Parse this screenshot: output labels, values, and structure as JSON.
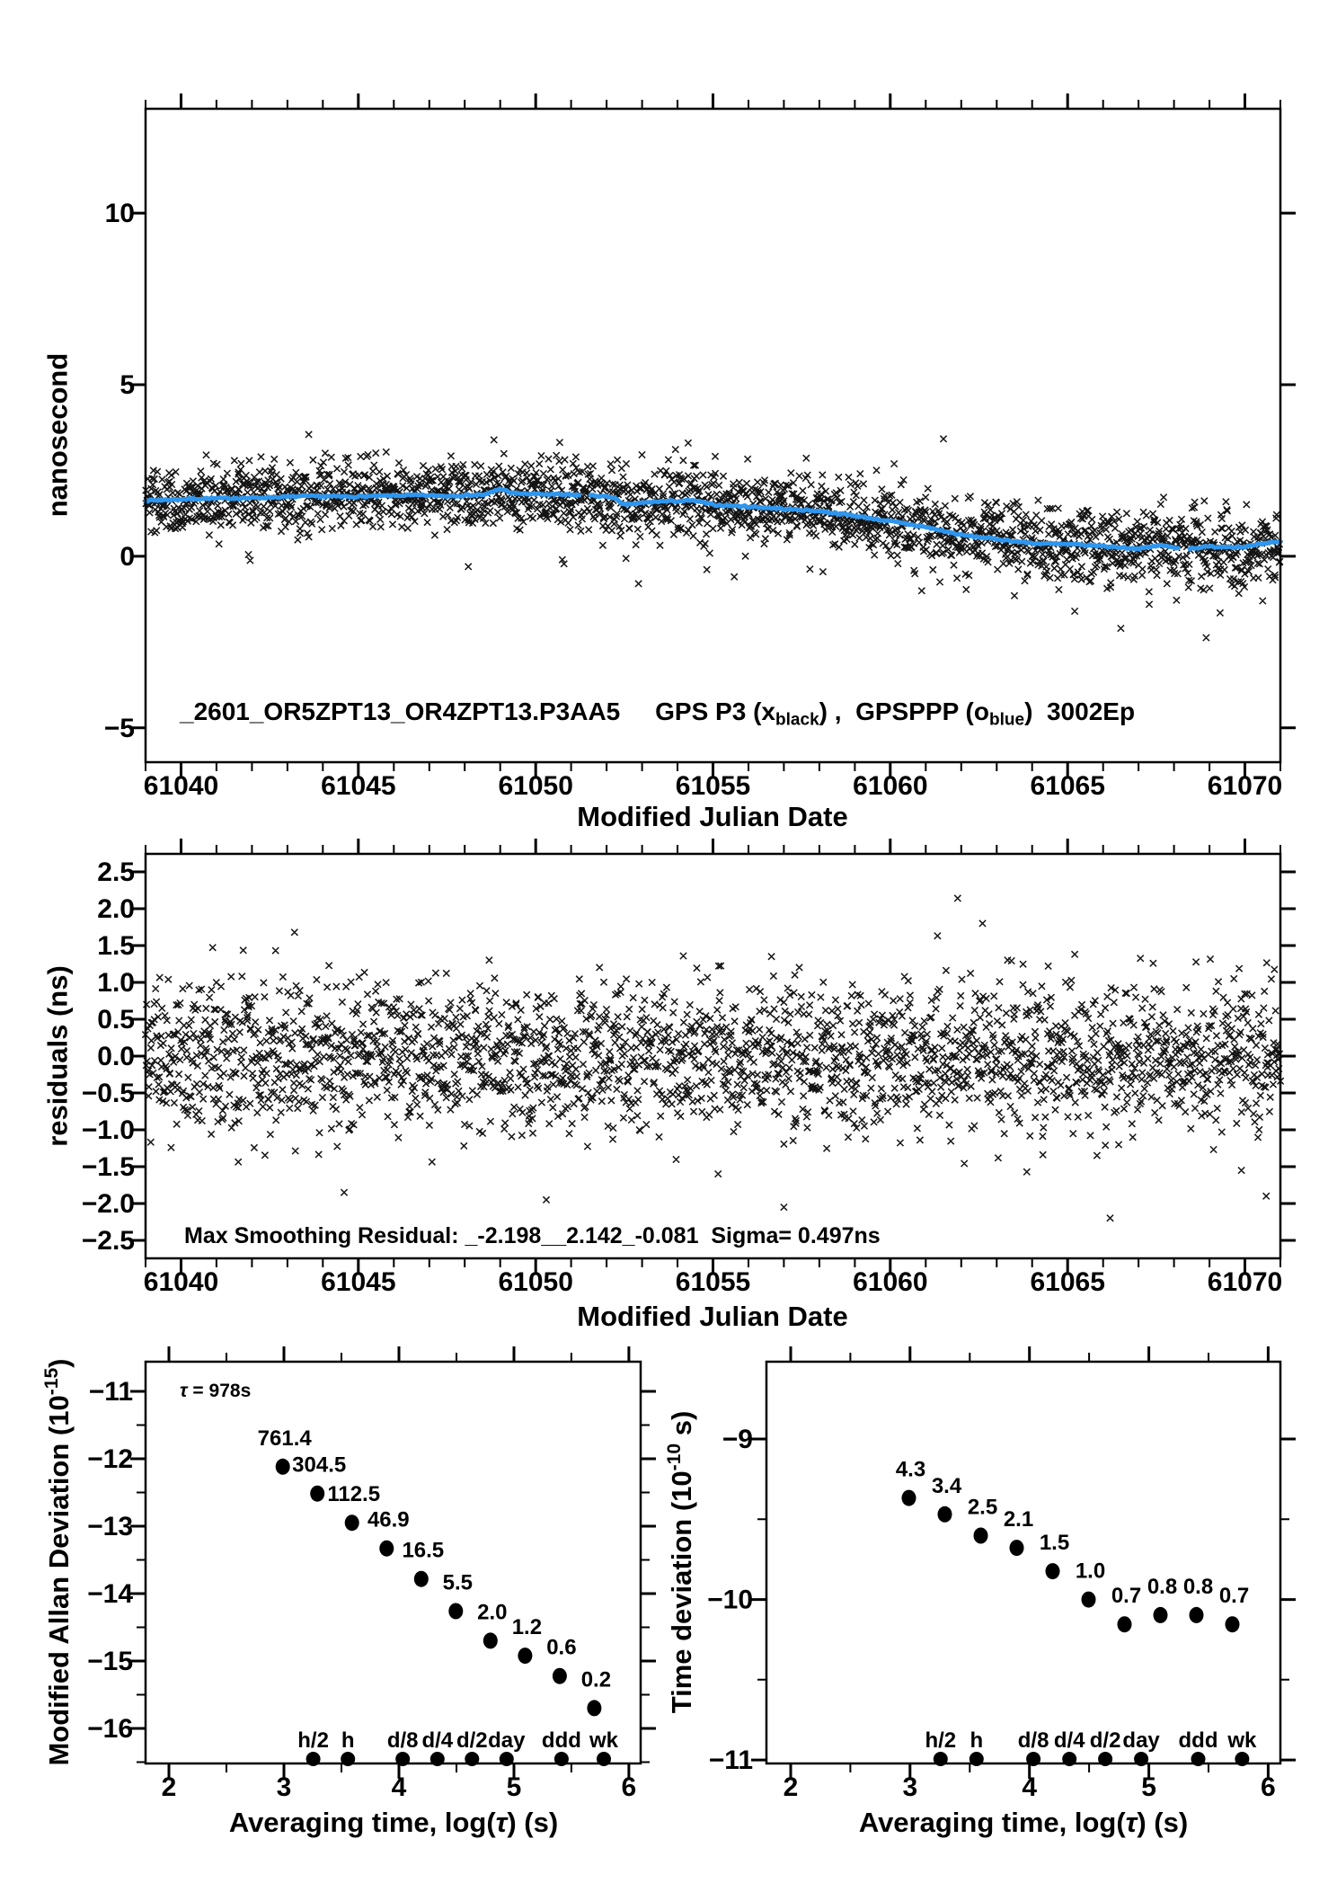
{
  "colors": {
    "background": "#ffffff",
    "frame_black": "#000000",
    "scatter_marker_black": "#000000",
    "smoothed_line_blue": "#2E96EE",
    "data_label_red": "#E60000"
  },
  "chart_data": [
    {
      "id": "gps_time_series",
      "type": "scatter",
      "title": "_2601_OR5ZPT13_OR4ZPT13.P3AA5  GPS P3 (x_black) , GPSPPP (o_blue)  3002Ep",
      "title_segments": [
        {
          "t": "_2601_OR5ZPT13_OR4ZPT13.P3AA5     GPS P3 (x"
        },
        {
          "t": "black",
          "sub": true
        },
        {
          "t": ") ,  GPSPPP (o"
        },
        {
          "t": "blue",
          "sub": true
        },
        {
          "t": ")  3002Ep"
        }
      ],
      "ylabel": "nanosecond",
      "xlabel": "Modified Julian Date",
      "xlim": [
        61039,
        61071
      ],
      "ylim": [
        -6.0,
        13.04
      ],
      "xticks": [
        61040,
        61045,
        61050,
        61055,
        61060,
        61065,
        61070
      ],
      "xminor_step": 1,
      "yticks": [
        -5,
        0,
        5,
        10
      ],
      "grid": false,
      "scatter": {
        "marker": "x",
        "n": 2400,
        "seed": 42,
        "sigma_start": 0.46,
        "sigma_end": 0.56,
        "outliers": [
          [
            61041.9,
            0.05
          ],
          [
            61041.95,
            -0.12
          ],
          [
            61043.6,
            3.55
          ],
          [
            61048.1,
            -0.3
          ],
          [
            61050.75,
            -0.1
          ],
          [
            61050.8,
            -0.22
          ],
          [
            61052.9,
            -0.8
          ],
          [
            61054.3,
            3.3
          ],
          [
            61055.6,
            -0.6
          ],
          [
            61058.1,
            -0.45
          ],
          [
            61061.5,
            3.42
          ],
          [
            61063.5,
            -1.15
          ],
          [
            61065.2,
            -1.6
          ],
          [
            61066.5,
            -2.1
          ],
          [
            61067.3,
            -1.4
          ],
          [
            61069.3,
            -1.65
          ],
          [
            61070.5,
            -1.3
          ]
        ]
      },
      "smoothed": {
        "gaps": [
          [
            61051.25,
            61051.5
          ],
          [
            61068.15,
            61068.4
          ]
        ],
        "points": [
          [
            61039,
            1.62
          ],
          [
            61040.5,
            1.68
          ],
          [
            61042,
            1.7
          ],
          [
            61043.5,
            1.75
          ],
          [
            61045,
            1.74
          ],
          [
            61046.5,
            1.78
          ],
          [
            61047.5,
            1.76
          ],
          [
            61048.6,
            1.8
          ],
          [
            61049,
            1.97
          ],
          [
            61049.4,
            1.83
          ],
          [
            61050.5,
            1.8
          ],
          [
            61051.5,
            1.78
          ],
          [
            61052.2,
            1.72
          ],
          [
            61052.45,
            1.5
          ],
          [
            61053.5,
            1.6
          ],
          [
            61054.5,
            1.62
          ],
          [
            61055,
            1.5
          ],
          [
            61056,
            1.45
          ],
          [
            61057,
            1.38
          ],
          [
            61058,
            1.32
          ],
          [
            61059,
            1.18
          ],
          [
            61060,
            1.02
          ],
          [
            61061,
            0.85
          ],
          [
            61062,
            0.62
          ],
          [
            61063,
            0.5
          ],
          [
            61064,
            0.38
          ],
          [
            61065,
            0.35
          ],
          [
            61066,
            0.3
          ],
          [
            61067,
            0.22
          ],
          [
            61067.6,
            0.32
          ],
          [
            61068.3,
            0.22
          ],
          [
            61069,
            0.28
          ],
          [
            61070,
            0.28
          ],
          [
            61071,
            0.43
          ]
        ]
      }
    },
    {
      "id": "residuals",
      "type": "scatter",
      "ylabel": "residuals (ns)",
      "xlabel": "Modified Julian Date",
      "annotation": "Max Smoothing Residual: _-2.198__2.142_-0.081  Sigma= 0.497ns",
      "stats": {
        "min_ns": -2.198,
        "max_ns": 2.142,
        "mean_ns": -0.081,
        "sigma_ns": 0.497
      },
      "xlim": [
        61039,
        61071
      ],
      "ylim": [
        -2.744,
        2.744
      ],
      "xticks": [
        61040,
        61045,
        61050,
        61055,
        61060,
        61065,
        61070
      ],
      "xminor_step": 1,
      "yticks": [
        -2.5,
        -2.0,
        -1.5,
        -1.0,
        -0.5,
        0.0,
        0.5,
        1.0,
        1.5,
        2.0,
        2.5
      ],
      "grid": false,
      "scatter": {
        "marker": "x",
        "n": 2400,
        "seed": 1914,
        "sigma": 0.497,
        "clip": 1.95,
        "outliers": [
          [
            61043.2,
            1.68
          ],
          [
            61044.6,
            -1.85
          ],
          [
            61050.3,
            -1.95
          ],
          [
            61057,
            -2.05
          ],
          [
            61061.9,
            2.142
          ],
          [
            61062.6,
            1.8
          ],
          [
            61066.2,
            -2.198
          ],
          [
            61069.9,
            -1.55
          ],
          [
            61070.6,
            -1.9
          ]
        ]
      }
    },
    {
      "id": "modified_allan_deviation",
      "type": "scatter",
      "ylabel": "Modified Allan Deviation (10^-15)",
      "ylabel_segments": [
        {
          "t": "Modified Allan Deviation (10"
        },
        {
          "t": "-15",
          "sup": true
        },
        {
          "t": ")"
        }
      ],
      "xlabel": "Averaging time, log(τ) (s)",
      "xlabel_segments": [
        {
          "t": "Averaging time, log("
        },
        {
          "t": "τ",
          "i": true
        },
        {
          "t": ") (s)"
        }
      ],
      "tau_annotation": "τ = 978s",
      "tau_segments": [
        {
          "t": "τ",
          "i": true
        },
        {
          "t": " = 978s"
        }
      ],
      "xlim": [
        1.797,
        6.102
      ],
      "ylim": [
        -16.52,
        -10.56
      ],
      "xticks": [
        2,
        3,
        4,
        5,
        6
      ],
      "xminor_step": 0.5,
      "yticks": [
        -16,
        -15,
        -14,
        -13,
        -12,
        -11
      ],
      "yminor_step": 0.5,
      "grid": false,
      "x_log_tau": [
        2.99,
        3.291,
        3.592,
        3.893,
        4.194,
        4.495,
        4.796,
        5.097,
        5.398,
        5.699
      ],
      "y_log": [
        -12.118,
        -12.516,
        -12.949,
        -13.329,
        -13.783,
        -14.26,
        -14.699,
        -14.921,
        -15.222,
        -15.699
      ],
      "values_1e_15": [
        761.4,
        304.5,
        112.5,
        46.9,
        16.5,
        5.5,
        2.0,
        1.2,
        0.6,
        0.2
      ],
      "point_labels": [
        "761.4",
        "304.5",
        "112.5",
        "46.9",
        "16.5",
        "5.5",
        "2.0",
        "1.2",
        "0.6",
        "0.2"
      ],
      "time_markers": [
        {
          "label": "h/2",
          "log_tau": 3.2553
        },
        {
          "label": "h",
          "log_tau": 3.5563
        },
        {
          "label": "d/8",
          "log_tau": 4.0334
        },
        {
          "label": "d/4",
          "log_tau": 4.3345
        },
        {
          "label": "d/2",
          "log_tau": 4.6355
        },
        {
          "label": "day",
          "log_tau": 4.9365
        },
        {
          "label": "ddd",
          "log_tau": 5.4137
        },
        {
          "label": "wk",
          "log_tau": 5.7817
        }
      ]
    },
    {
      "id": "time_deviation",
      "type": "scatter",
      "ylabel": "Time deviation (10^-10 s)",
      "ylabel_segments": [
        {
          "t": "Time deviation (10"
        },
        {
          "t": "-10",
          "sup": true
        },
        {
          "t": " s)"
        }
      ],
      "xlabel": "Averaging time, log(τ) (s)",
      "xlabel_segments": [
        {
          "t": "Averaging time, log("
        },
        {
          "t": "τ",
          "i": true
        },
        {
          "t": ") (s)"
        }
      ],
      "xlim": [
        1.797,
        6.102
      ],
      "ylim": [
        -11.022,
        -8.518
      ],
      "xticks": [
        2,
        3,
        4,
        5,
        6
      ],
      "xminor_step": 0.5,
      "yticks": [
        -11,
        -10,
        -9
      ],
      "yminor_step": 0.5,
      "grid": false,
      "x_log_tau": [
        2.99,
        3.291,
        3.592,
        3.893,
        4.194,
        4.495,
        4.796,
        5.097,
        5.398,
        5.699
      ],
      "y_log": [
        -9.367,
        -9.469,
        -9.602,
        -9.678,
        -9.824,
        -10.0,
        -10.155,
        -10.097,
        -10.097,
        -10.155
      ],
      "values_1e_10": [
        4.3,
        3.4,
        2.5,
        2.1,
        1.5,
        1.0,
        0.7,
        0.8,
        0.8,
        0.7
      ],
      "point_labels": [
        "4.3",
        "3.4",
        "2.5",
        "2.1",
        "1.5",
        "1.0",
        "0.7",
        "0.8",
        "0.8",
        "0.7"
      ],
      "time_markers": [
        {
          "label": "h/2",
          "log_tau": 3.2553
        },
        {
          "label": "h",
          "log_tau": 3.5563
        },
        {
          "label": "d/8",
          "log_tau": 4.0334
        },
        {
          "label": "d/4",
          "log_tau": 4.3345
        },
        {
          "label": "d/2",
          "log_tau": 4.6355
        },
        {
          "label": "day",
          "log_tau": 4.9365
        },
        {
          "label": "ddd",
          "log_tau": 5.4137
        },
        {
          "label": "wk",
          "log_tau": 5.7817
        }
      ]
    }
  ]
}
